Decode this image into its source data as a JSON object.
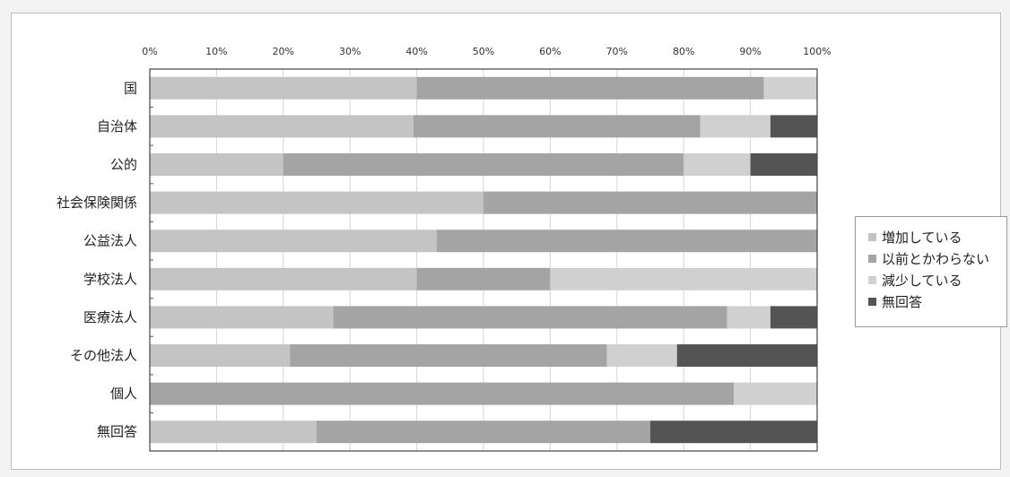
{
  "chart_data": {
    "type": "bar",
    "orientation": "horizontal",
    "stacked": "percent",
    "categories": [
      "国",
      "自治体",
      "公的",
      "社会保険関係",
      "公益法人",
      "学校法人",
      "医療法人",
      "その他法人",
      "個人",
      "無回答"
    ],
    "series": [
      {
        "name": "増加している",
        "color": "#c4c4c4",
        "values": [
          40,
          39.5,
          20,
          50,
          43,
          40,
          27.5,
          21,
          0,
          25
        ]
      },
      {
        "name": "以前とかわらない",
        "color": "#a4a4a4",
        "values": [
          52,
          43,
          60,
          50,
          57,
          20,
          59,
          47.5,
          87.5,
          50
        ]
      },
      {
        "name": "減少している",
        "color": "#d0d0d0",
        "values": [
          8,
          10.5,
          10,
          0,
          0,
          40,
          6.5,
          10.5,
          12.5,
          0
        ]
      },
      {
        "name": "無回答",
        "color": "#545454",
        "values": [
          0,
          7,
          10,
          0,
          0,
          0,
          7,
          21,
          0,
          25
        ]
      }
    ],
    "xlim": [
      0,
      100
    ],
    "x_ticks": [
      "0%",
      "10%",
      "20%",
      "30%",
      "40%",
      "50%",
      "60%",
      "70%",
      "80%",
      "90%",
      "100%"
    ],
    "grid": true,
    "legend_position": "right"
  }
}
